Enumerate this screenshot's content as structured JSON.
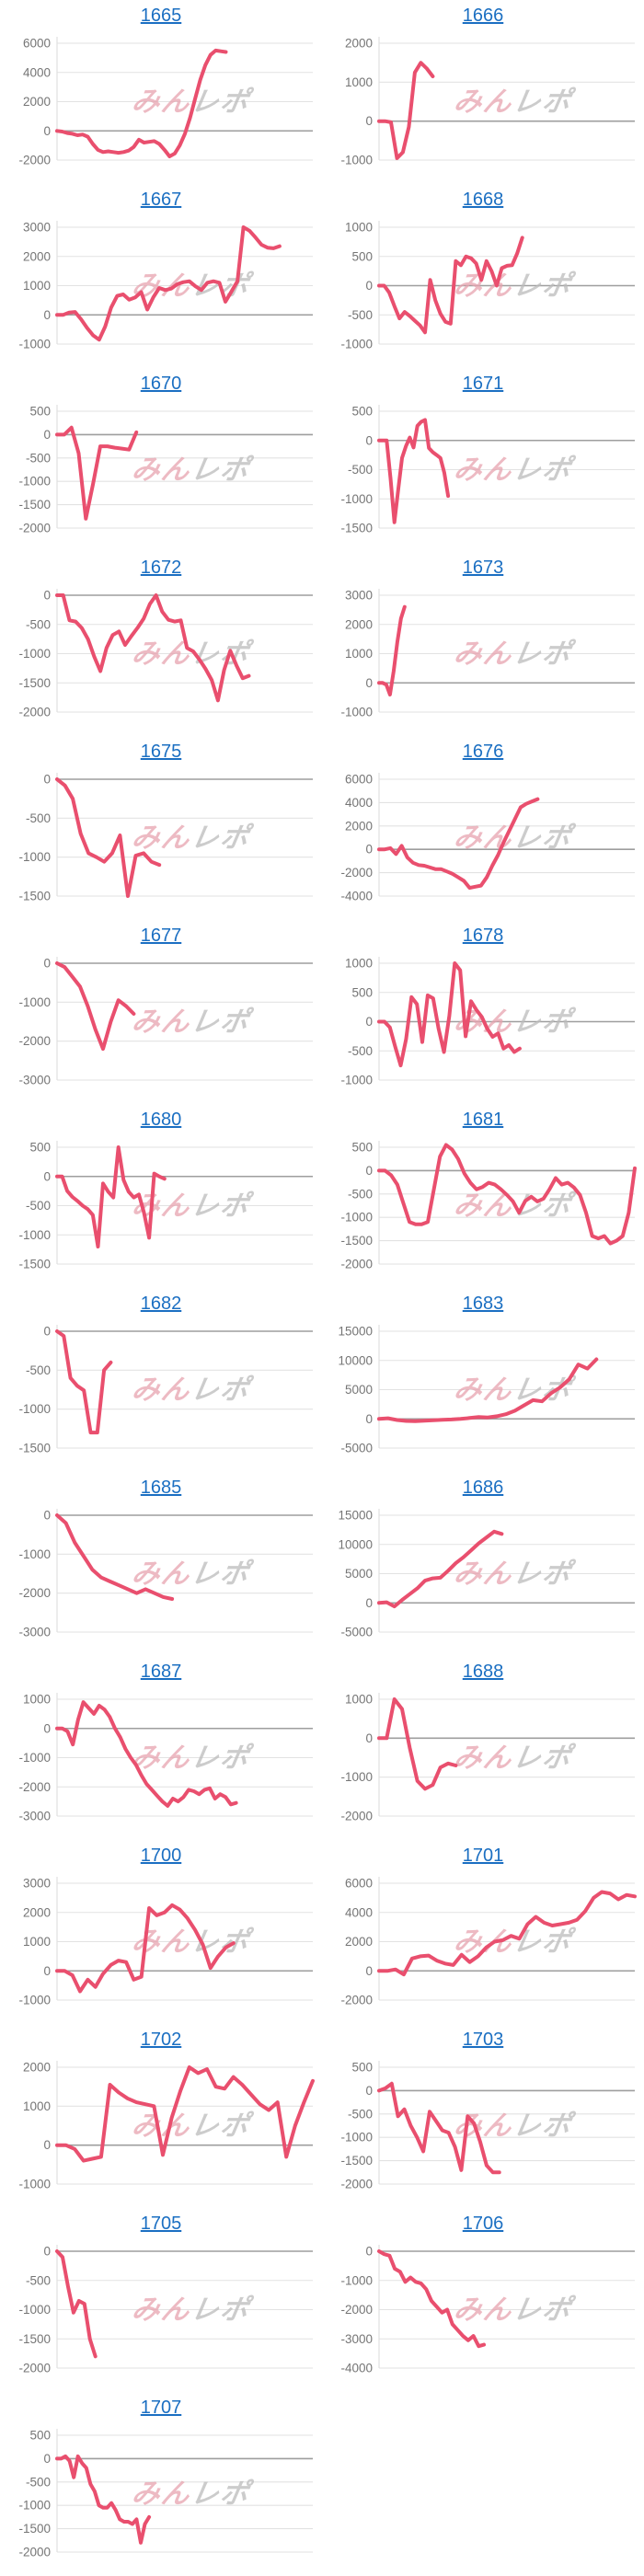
{
  "page": {
    "background": "#ffffff",
    "link_color": "#1b6fc2",
    "line_color": "#e94f6e",
    "grid_color": "#e2e2e2",
    "zero_line_color": "#9e9e9e",
    "axis_label_color": "#757575",
    "watermark": {
      "pink_text": "みん",
      "gray_text": "レポ",
      "pink_color": "#e7a3af",
      "gray_color": "#bcbcbc"
    }
  },
  "chart_data": [
    {
      "type": "line",
      "title": "1665",
      "yticks": [
        6000,
        4000,
        2000,
        0,
        -2000
      ],
      "x_end": 0.66,
      "values": [
        0,
        -50,
        -150,
        -200,
        -300,
        -250,
        -400,
        -900,
        -1300,
        -1450,
        -1400,
        -1450,
        -1500,
        -1450,
        -1350,
        -1100,
        -600,
        -800,
        -750,
        -700,
        -900,
        -1300,
        -1750,
        -1550,
        -1000,
        -200,
        900,
        2200,
        3500,
        4500,
        5200,
        5500,
        5450,
        5400
      ]
    },
    {
      "type": "line",
      "title": "1666",
      "yticks": [
        2000,
        1000,
        0,
        -1000
      ],
      "x_end": 0.21,
      "values": [
        0,
        0,
        -30,
        -950,
        -800,
        -150,
        1250,
        1500,
        1350,
        1150
      ]
    },
    {
      "type": "line",
      "title": "1667",
      "yticks": [
        3000,
        2000,
        1000,
        0,
        -1000
      ],
      "x_end": 0.87,
      "values": [
        0,
        0,
        80,
        100,
        -150,
        -450,
        -700,
        -850,
        -400,
        250,
        650,
        700,
        520,
        600,
        780,
        180,
        600,
        920,
        850,
        900,
        1050,
        1120,
        1150,
        980,
        850,
        1100,
        1150,
        1100,
        450,
        800,
        1150,
        3000,
        2880,
        2650,
        2400,
        2300,
        2280,
        2350
      ]
    },
    {
      "type": "line",
      "title": "1668",
      "yticks": [
        1000,
        500,
        0,
        -500,
        -1000
      ],
      "x_end": 0.56,
      "values": [
        0,
        0,
        -120,
        -350,
        -560,
        -450,
        -520,
        -600,
        -680,
        -800,
        100,
        -250,
        -480,
        -620,
        -650,
        420,
        350,
        500,
        470,
        380,
        100,
        420,
        250,
        0,
        300,
        340,
        350,
        550,
        820
      ]
    },
    {
      "type": "line",
      "title": "1670",
      "yticks": [
        500,
        0,
        -500,
        -1000,
        -1500,
        -2000
      ],
      "x_end": 0.31,
      "values": [
        0,
        0,
        150,
        -400,
        -1800,
        -1050,
        -250,
        -250,
        -280,
        -300,
        -320,
        50
      ]
    },
    {
      "type": "line",
      "title": "1671",
      "yticks": [
        500,
        0,
        -500,
        -1000,
        -1500
      ],
      "x_end": 0.27,
      "values": [
        0,
        0,
        0,
        -650,
        -1400,
        -850,
        -300,
        -100,
        50,
        -120,
        250,
        320,
        350,
        -130,
        -200,
        -250,
        -300,
        -550,
        -950
      ]
    },
    {
      "type": "line",
      "title": "1672",
      "yticks": [
        0,
        -500,
        -1000,
        -1500,
        -2000
      ],
      "x_end": 0.75,
      "values": [
        0,
        0,
        -430,
        -450,
        -560,
        -750,
        -1050,
        -1300,
        -900,
        -680,
        -620,
        -850,
        -700,
        -560,
        -400,
        -150,
        0,
        -280,
        -420,
        -450,
        -430,
        -900,
        -960,
        -1100,
        -1260,
        -1450,
        -1800,
        -1280,
        -950,
        -1200,
        -1420,
        -1380
      ]
    },
    {
      "type": "line",
      "title": "1673",
      "yticks": [
        3000,
        2000,
        1000,
        0,
        -1000
      ],
      "x_end": 0.1,
      "values": [
        0,
        0,
        -60,
        -400,
        400,
        1400,
        2200,
        2600
      ]
    },
    {
      "type": "line",
      "title": "1675",
      "yticks": [
        0,
        -500,
        -1000,
        -1500
      ],
      "x_end": 0.4,
      "values": [
        0,
        -80,
        -250,
        -700,
        -950,
        -1000,
        -1060,
        -950,
        -720,
        -1500,
        -980,
        -950,
        -1060,
        -1100
      ]
    },
    {
      "type": "line",
      "title": "1676",
      "yticks": [
        6000,
        4000,
        2000,
        0,
        -2000,
        -4000
      ],
      "x_end": 0.62,
      "values": [
        0,
        0,
        100,
        -400,
        300,
        -700,
        -1150,
        -1350,
        -1400,
        -1550,
        -1700,
        -1700,
        -1900,
        -2100,
        -2400,
        -2700,
        -3300,
        -3200,
        -3100,
        -2400,
        -1400,
        -500,
        600,
        1600,
        2600,
        3600,
        3900,
        4100,
        4300
      ]
    },
    {
      "type": "line",
      "title": "1677",
      "yticks": [
        0,
        -1000,
        -2000,
        -3000
      ],
      "x_end": 0.3,
      "values": [
        0,
        -100,
        -350,
        -600,
        -1100,
        -1700,
        -2200,
        -1500,
        -950,
        -1100,
        -1300
      ]
    },
    {
      "type": "line",
      "title": "1678",
      "yticks": [
        1000,
        500,
        0,
        -500,
        -1000
      ],
      "x_end": 0.55,
      "values": [
        0,
        0,
        -100,
        -430,
        -750,
        -300,
        420,
        300,
        -350,
        450,
        400,
        -120,
        -520,
        100,
        1000,
        880,
        -250,
        350,
        200,
        80,
        -120,
        -260,
        -200,
        -460,
        -400,
        -520,
        -460
      ]
    },
    {
      "type": "line",
      "title": "1680",
      "yticks": [
        500,
        0,
        -500,
        -1000,
        -1500
      ],
      "x_end": 0.42,
      "values": [
        0,
        0,
        -250,
        -350,
        -420,
        -500,
        -560,
        -660,
        -1200,
        -120,
        -260,
        -360,
        500,
        -60,
        -260,
        -360,
        -310,
        -620,
        -1050,
        50,
        0,
        -40
      ]
    },
    {
      "type": "line",
      "title": "1681",
      "yticks": [
        500,
        0,
        -500,
        -1000,
        -1500,
        -2000
      ],
      "x_end": 1.0,
      "values": [
        0,
        0,
        -100,
        -300,
        -700,
        -1100,
        -1150,
        -1150,
        -1100,
        -400,
        300,
        550,
        450,
        250,
        -60,
        -260,
        -400,
        -350,
        -260,
        -300,
        -400,
        -520,
        -660,
        -900,
        -650,
        -560,
        -660,
        -600,
        -400,
        -160,
        -300,
        -260,
        -360,
        -520,
        -900,
        -1400,
        -1450,
        -1400,
        -1560,
        -1500,
        -1400,
        -900,
        50
      ]
    },
    {
      "type": "line",
      "title": "1682",
      "yticks": [
        0,
        -500,
        -1000,
        -1500
      ],
      "x_end": 0.21,
      "values": [
        0,
        -60,
        -600,
        -700,
        -760,
        -1300,
        -1300,
        -500,
        -400
      ]
    },
    {
      "type": "line",
      "title": "1683",
      "yticks": [
        15000,
        10000,
        5000,
        0,
        -5000
      ],
      "x_end": 0.85,
      "values": [
        0,
        100,
        -200,
        -350,
        -400,
        -300,
        -250,
        -150,
        -100,
        0,
        150,
        300,
        250,
        450,
        800,
        1400,
        2300,
        3200,
        3000,
        4400,
        5400,
        6800,
        9300,
        8600,
        10200
      ]
    },
    {
      "type": "line",
      "title": "1685",
      "yticks": [
        0,
        -1000,
        -2000,
        -3000
      ],
      "x_end": 0.45,
      "values": [
        0,
        -200,
        -700,
        -1050,
        -1400,
        -1600,
        -1700,
        -1800,
        -1900,
        -2000,
        -1900,
        -2000,
        -2100,
        -2150
      ]
    },
    {
      "type": "line",
      "title": "1686",
      "yticks": [
        15000,
        10000,
        5000,
        0,
        -5000
      ],
      "x_end": 0.48,
      "values": [
        0,
        100,
        -600,
        500,
        1500,
        2500,
        3800,
        4200,
        4300,
        5500,
        6800,
        7800,
        9000,
        10200,
        11200,
        12200,
        11800
      ]
    },
    {
      "type": "line",
      "title": "1687",
      "yticks": [
        1000,
        0,
        -1000,
        -2000,
        -3000
      ],
      "x_end": 0.7,
      "values": [
        0,
        0,
        -100,
        -550,
        300,
        900,
        700,
        500,
        780,
        650,
        400,
        0,
        -300,
        -700,
        -1000,
        -1250,
        -1600,
        -1900,
        -2100,
        -2300,
        -2500,
        -2650,
        -2400,
        -2500,
        -2350,
        -2100,
        -2150,
        -2250,
        -2100,
        -2050,
        -2400,
        -2250,
        -2350,
        -2600,
        -2550
      ]
    },
    {
      "type": "line",
      "title": "1688",
      "yticks": [
        1000,
        0,
        -1000,
        -2000
      ],
      "x_end": 0.3,
      "values": [
        0,
        0,
        1000,
        750,
        -250,
        -1100,
        -1300,
        -1200,
        -750,
        -650,
        -700
      ]
    },
    {
      "type": "line",
      "title": "1700",
      "yticks": [
        3000,
        2000,
        1000,
        0,
        -1000
      ],
      "x_end": 0.69,
      "values": [
        0,
        0,
        -150,
        -700,
        -300,
        -550,
        -100,
        200,
        350,
        300,
        -300,
        -200,
        2150,
        1900,
        2000,
        2250,
        2100,
        1800,
        1400,
        900,
        100,
        500,
        800,
        950
      ]
    },
    {
      "type": "line",
      "title": "1701",
      "yticks": [
        6000,
        4000,
        2000,
        0,
        -2000
      ],
      "x_end": 1.0,
      "values": [
        0,
        0,
        100,
        -250,
        850,
        1000,
        1050,
        700,
        500,
        400,
        1100,
        600,
        1000,
        1600,
        2000,
        2100,
        2400,
        2200,
        3200,
        3700,
        3300,
        3100,
        3200,
        3300,
        3500,
        4100,
        5000,
        5400,
        5300,
        4900,
        5200,
        5100
      ]
    },
    {
      "type": "line",
      "title": "1702",
      "yticks": [
        2000,
        1000,
        0,
        -1000
      ],
      "x_end": 1.0,
      "values": [
        0,
        0,
        -100,
        -400,
        -350,
        -300,
        1550,
        1350,
        1200,
        1100,
        1050,
        1000,
        -250,
        700,
        1400,
        2000,
        1850,
        1950,
        1500,
        1450,
        1750,
        1550,
        1300,
        1050,
        900,
        1100,
        -300,
        500,
        1100,
        1650
      ]
    },
    {
      "type": "line",
      "title": "1703",
      "yticks": [
        500,
        0,
        -500,
        -1000,
        -1500,
        -2000
      ],
      "x_end": 0.47,
      "values": [
        0,
        50,
        150,
        -550,
        -400,
        -750,
        -1000,
        -1300,
        -450,
        -650,
        -850,
        -900,
        -1200,
        -1700,
        -550,
        -700,
        -1100,
        -1600,
        -1750,
        -1750
      ]
    },
    {
      "type": "line",
      "title": "1705",
      "yticks": [
        0,
        -500,
        -1000,
        -1500,
        -2000
      ],
      "x_end": 0.15,
      "values": [
        0,
        -100,
        -600,
        -1050,
        -850,
        -900,
        -1500,
        -1800
      ]
    },
    {
      "type": "line",
      "title": "1706",
      "yticks": [
        0,
        -1000,
        -2000,
        -3000,
        -4000
      ],
      "x_end": 0.41,
      "values": [
        0,
        -100,
        -150,
        -600,
        -700,
        -1050,
        -900,
        -1050,
        -1100,
        -1300,
        -1700,
        -1900,
        -2100,
        -2000,
        -2500,
        -2700,
        -2900,
        -3050,
        -2900,
        -3250,
        -3200
      ]
    },
    {
      "type": "line",
      "title": "1707",
      "yticks": [
        500,
        0,
        -500,
        -1000,
        -1500,
        -2000
      ],
      "x_end": 0.36,
      "values": [
        0,
        0,
        50,
        -50,
        -400,
        50,
        -100,
        -200,
        -550,
        -700,
        -1000,
        -1050,
        -1050,
        -950,
        -1100,
        -1300,
        -1350,
        -1350,
        -1400,
        -1300,
        -1800,
        -1400,
        -1250
      ]
    }
  ]
}
